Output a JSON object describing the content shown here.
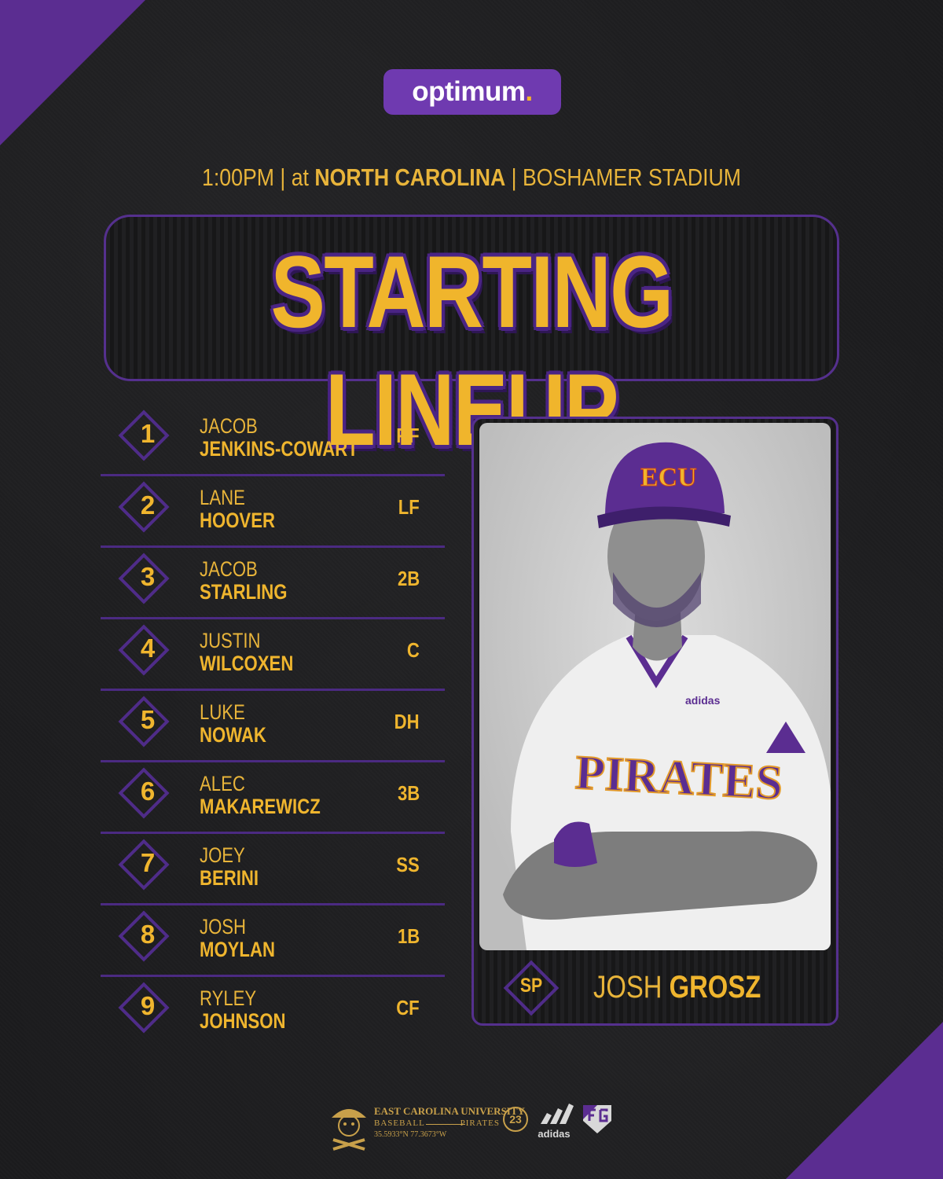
{
  "sponsor": {
    "name": "optimum",
    "dot": "."
  },
  "game_info": {
    "time": "1:00PM",
    "sep1": " | ",
    "prefix": "at ",
    "opponent": "NORTH CAROLINA",
    "sep2": " | ",
    "venue": "BOSHAMER STADIUM"
  },
  "title": "STARTING LINEUP",
  "lineup": [
    {
      "order": "1",
      "first": "JACOB",
      "last": "JENKINS-COWART",
      "position": "RF"
    },
    {
      "order": "2",
      "first": "LANE",
      "last": "HOOVER",
      "position": "LF"
    },
    {
      "order": "3",
      "first": "JACOB",
      "last": "STARLING",
      "position": "2B"
    },
    {
      "order": "4",
      "first": "JUSTIN",
      "last": "WILCOXEN",
      "position": "C"
    },
    {
      "order": "5",
      "first": "LUKE",
      "last": "NOWAK",
      "position": "DH"
    },
    {
      "order": "6",
      "first": "ALEC",
      "last": "MAKAREWICZ",
      "position": "3B"
    },
    {
      "order": "7",
      "first": "JOEY",
      "last": "BERINI",
      "position": "SS"
    },
    {
      "order": "8",
      "first": "JOSH",
      "last": "MOYLAN",
      "position": "1B"
    },
    {
      "order": "9",
      "first": "RYLEY",
      "last": "JOHNSON",
      "position": "CF"
    }
  ],
  "starting_pitcher": {
    "label": "SP",
    "first": "JOSH",
    "last": "GROSZ"
  },
  "player_photo": {
    "cap_text": "ECU",
    "jersey_text": "PIRATES",
    "brand_text": "adidas"
  },
  "footer": {
    "school": "EAST CAROLINA UNIVERSITY",
    "sport": "BASEBALL",
    "team": "PIRATES",
    "coordinates": "35.5933°N 77.3673°W",
    "badge": "23",
    "brand": "adidas"
  },
  "colors": {
    "purple": "#5b2d91",
    "gold": "#efb52e",
    "background": "#1b1b1d"
  },
  "icons": [
    "pirate-logo-icon",
    "adidas-logo-icon",
    "fg-logo-icon",
    "aac-logo-icon"
  ]
}
